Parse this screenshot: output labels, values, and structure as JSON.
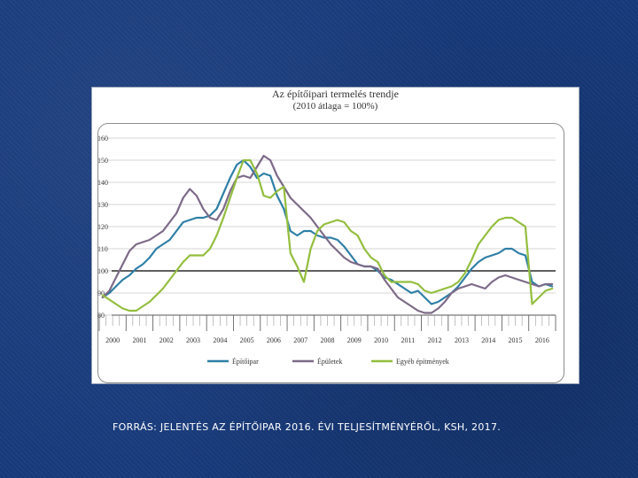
{
  "footer": {
    "source": "FORRÁS: JELENTÉS AZ ÉPÍTŐIPAR 2016. ÉVI TELJESÍTMÉNYÉRŐL, KSH, 2017."
  },
  "chart_data": {
    "type": "line",
    "title": "Az építőipari termelés trendje",
    "subtitle": "(2010 átlaga = 100%)",
    "ylim": [
      80,
      160
    ],
    "yticks": [
      80,
      90,
      100,
      110,
      120,
      130,
      140,
      150,
      160
    ],
    "years": [
      "2000",
      "2001",
      "2002",
      "2003",
      "2004",
      "2005",
      "2006",
      "2007",
      "2008",
      "2009",
      "2010",
      "2011",
      "2012",
      "2013",
      "2014",
      "2015",
      "2016"
    ],
    "x_unit": "quarter",
    "reference_line": 100,
    "series": [
      {
        "name": "Építőipar",
        "color": "#2e7fa6",
        "values": [
          88,
          90,
          93,
          96,
          98,
          101,
          103,
          106,
          110,
          112,
          114,
          118,
          122,
          123,
          124,
          124,
          125,
          128,
          135,
          142,
          148,
          150,
          147,
          142,
          144,
          143,
          134,
          128,
          118,
          116,
          118,
          118,
          116,
          115,
          115,
          114,
          111,
          107,
          103,
          102,
          102,
          100,
          97,
          96,
          94,
          92,
          90,
          91,
          88,
          85,
          86,
          88,
          90,
          93,
          97,
          101,
          104,
          106,
          107,
          108,
          110,
          110,
          108,
          107,
          95,
          93,
          94,
          93
        ]
      },
      {
        "name": "Épületek",
        "color": "#7d6a88",
        "values": [
          88,
          91,
          97,
          103,
          109,
          112,
          113,
          114,
          116,
          118,
          122,
          126,
          133,
          137,
          134,
          128,
          124,
          123,
          128,
          136,
          142,
          143,
          142,
          147,
          152,
          150,
          143,
          138,
          133,
          130,
          127,
          124,
          120,
          116,
          112,
          109,
          106,
          104,
          103,
          102,
          102,
          101,
          96,
          92,
          88,
          86,
          84,
          82,
          81,
          81,
          83,
          86,
          90,
          92,
          93,
          94,
          93,
          92,
          95,
          97,
          98,
          97,
          96,
          95,
          94,
          93,
          94,
          94
        ]
      },
      {
        "name": "Egyéb építmények",
        "color": "#93be3e",
        "values": [
          89,
          87,
          85,
          83,
          82,
          82,
          84,
          86,
          89,
          92,
          96,
          100,
          104,
          107,
          107,
          107,
          110,
          116,
          124,
          133,
          142,
          150,
          150,
          144,
          134,
          133,
          136,
          138,
          108,
          102,
          95,
          110,
          118,
          121,
          122,
          123,
          122,
          118,
          116,
          110,
          106,
          104,
          98,
          95,
          95,
          95,
          95,
          94,
          91,
          90,
          91,
          92,
          93,
          95,
          99,
          105,
          112,
          116,
          120,
          123,
          124,
          124,
          122,
          120,
          85,
          88,
          91,
          92
        ]
      }
    ]
  }
}
